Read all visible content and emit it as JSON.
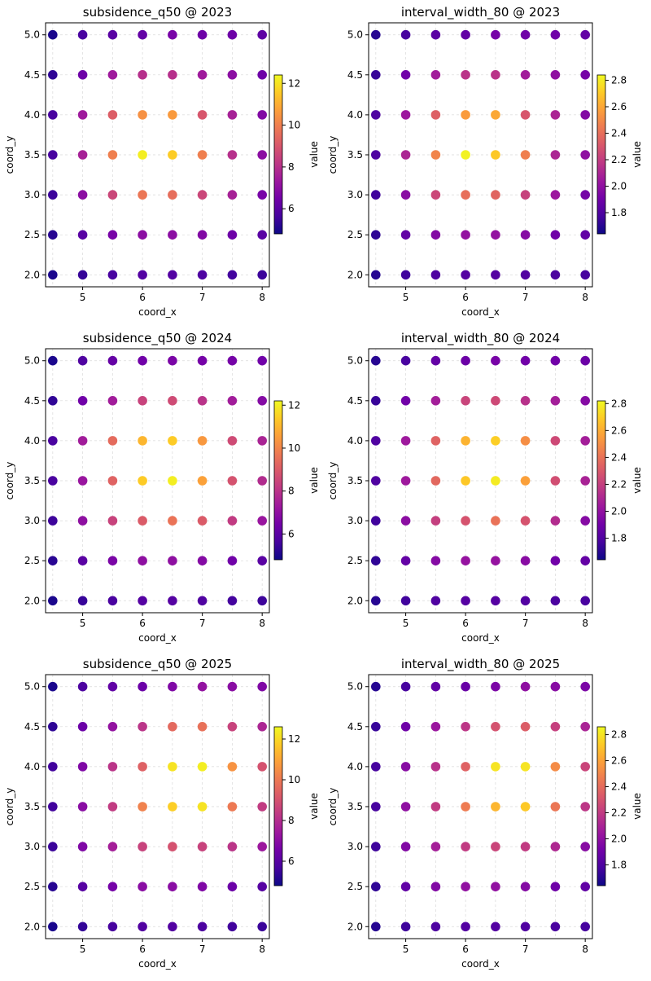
{
  "figure": {
    "x_grid": [
      4.5,
      5.0,
      5.5,
      6.0,
      6.5,
      7.0,
      7.5,
      8.0
    ],
    "y_grid": [
      2.0,
      2.5,
      3.0,
      3.5,
      4.0,
      4.5,
      5.0
    ],
    "colormap": [
      "#0d0887",
      "#46039f",
      "#7201a8",
      "#9c179e",
      "#bd3786",
      "#d8576b",
      "#ed7953",
      "#fb9f3a",
      "#fdca26",
      "#f0f921"
    ]
  },
  "chart_data": [
    {
      "type": "scatter",
      "title": "subsidence_q50 @ 2023",
      "xlabel": "coord_x",
      "ylabel": "coord_y",
      "colorbar_label": "value",
      "xlim": [
        4.38,
        8.12
      ],
      "ylim": [
        1.85,
        5.15
      ],
      "xticks": [
        5,
        6,
        7,
        8
      ],
      "yticks": [
        "2.0",
        "2.5",
        "3.0",
        "3.5",
        "4.0",
        "4.5",
        "5.0"
      ],
      "clim": [
        4.8,
        12.4
      ],
      "cticks": [
        6,
        8,
        10,
        12
      ],
      "grid": true,
      "values": [
        [
          5.0,
          5.4,
          5.7,
          5.9,
          5.9,
          5.8,
          5.6,
          5.5
        ],
        [
          5.2,
          6.0,
          6.6,
          7.0,
          7.0,
          6.8,
          6.4,
          6.0
        ],
        [
          5.5,
          7.0,
          8.6,
          9.8,
          9.6,
          8.6,
          7.6,
          6.6
        ],
        [
          5.7,
          7.6,
          10.0,
          12.2,
          11.6,
          10.0,
          8.0,
          7.0
        ],
        [
          5.7,
          7.4,
          9.2,
          10.4,
          10.6,
          9.0,
          7.6,
          6.8
        ],
        [
          5.3,
          6.4,
          7.4,
          8.0,
          8.0,
          7.4,
          7.0,
          6.4
        ],
        [
          5.0,
          5.7,
          6.0,
          6.2,
          6.6,
          6.4,
          6.4,
          6.1
        ]
      ]
    },
    {
      "type": "scatter",
      "title": "interval_width_80 @ 2023",
      "xlabel": "coord_x",
      "ylabel": "coord_y",
      "colorbar_label": "value",
      "xlim": [
        4.38,
        8.12
      ],
      "ylim": [
        1.85,
        5.15
      ],
      "xticks": [
        5,
        6,
        7,
        8
      ],
      "yticks": [
        "2.0",
        "2.5",
        "3.0",
        "3.5",
        "4.0",
        "4.5",
        "5.0"
      ],
      "clim": [
        1.64,
        2.84
      ],
      "cticks": [
        "1.8",
        "2.0",
        "2.2",
        "2.4",
        "2.6",
        "2.8"
      ],
      "grid": true,
      "values": [
        [
          1.7,
          1.76,
          1.8,
          1.82,
          1.82,
          1.81,
          1.79,
          1.78
        ],
        [
          1.72,
          1.86,
          1.96,
          2.01,
          2.01,
          1.97,
          1.9,
          1.86
        ],
        [
          1.76,
          1.98,
          2.24,
          2.4,
          2.36,
          2.22,
          2.04,
          1.92
        ],
        [
          1.8,
          2.1,
          2.48,
          2.82,
          2.7,
          2.46,
          2.1,
          2.0
        ],
        [
          1.8,
          2.04,
          2.34,
          2.56,
          2.6,
          2.3,
          2.1,
          1.96
        ],
        [
          1.74,
          1.9,
          2.06,
          2.16,
          2.16,
          2.06,
          2.0,
          1.92
        ],
        [
          1.7,
          1.78,
          1.84,
          1.86,
          1.92,
          1.9,
          1.9,
          1.86
        ]
      ]
    },
    {
      "type": "scatter",
      "title": "subsidence_q50 @ 2024",
      "xlabel": "coord_x",
      "ylabel": "coord_y",
      "colorbar_label": "value",
      "xlim": [
        4.38,
        8.12
      ],
      "ylim": [
        1.85,
        5.15
      ],
      "xticks": [
        5,
        6,
        7,
        8
      ],
      "yticks": [
        "2.0",
        "2.5",
        "3.0",
        "3.5",
        "4.0",
        "4.5",
        "5.0"
      ],
      "clim": [
        4.8,
        12.2
      ],
      "cticks": [
        6,
        8,
        10,
        12
      ],
      "grid": true,
      "values": [
        [
          5.0,
          5.4,
          5.7,
          5.9,
          5.9,
          5.8,
          5.6,
          5.5
        ],
        [
          5.2,
          6.0,
          6.6,
          7.0,
          7.0,
          6.8,
          6.4,
          6.0
        ],
        [
          5.5,
          7.0,
          8.4,
          9.0,
          9.6,
          9.0,
          8.2,
          7.2
        ],
        [
          5.7,
          7.2,
          9.2,
          11.4,
          12.0,
          10.6,
          8.8,
          7.8
        ],
        [
          5.7,
          7.4,
          9.4,
          11.0,
          11.4,
          10.4,
          8.6,
          7.6
        ],
        [
          5.3,
          6.4,
          7.4,
          8.4,
          8.6,
          8.0,
          7.4,
          6.8
        ],
        [
          5.0,
          5.8,
          6.2,
          6.4,
          6.6,
          6.5,
          6.5,
          6.4
        ]
      ]
    },
    {
      "type": "scatter",
      "title": "interval_width_80 @ 2024",
      "xlabel": "coord_x",
      "ylabel": "coord_y",
      "colorbar_label": "value",
      "xlim": [
        4.38,
        8.12
      ],
      "ylim": [
        1.85,
        5.15
      ],
      "xticks": [
        5,
        6,
        7,
        8
      ],
      "yticks": [
        "2.0",
        "2.5",
        "3.0",
        "3.5",
        "4.0",
        "4.5",
        "5.0"
      ],
      "clim": [
        1.64,
        2.82
      ],
      "cticks": [
        "1.8",
        "2.0",
        "2.2",
        "2.4",
        "2.6",
        "2.8"
      ],
      "grid": true,
      "values": [
        [
          1.7,
          1.76,
          1.8,
          1.82,
          1.82,
          1.81,
          1.79,
          1.78
        ],
        [
          1.72,
          1.86,
          1.96,
          2.01,
          2.01,
          1.97,
          1.9,
          1.86
        ],
        [
          1.76,
          1.98,
          2.2,
          2.28,
          2.4,
          2.28,
          2.12,
          1.96
        ],
        [
          1.8,
          2.04,
          2.36,
          2.68,
          2.78,
          2.56,
          2.26,
          2.08
        ],
        [
          1.8,
          2.04,
          2.34,
          2.62,
          2.7,
          2.5,
          2.24,
          2.06
        ],
        [
          1.74,
          1.9,
          2.06,
          2.22,
          2.24,
          2.14,
          2.06,
          1.96
        ],
        [
          1.7,
          1.78,
          1.86,
          1.88,
          1.92,
          1.9,
          1.9,
          1.88
        ]
      ]
    },
    {
      "type": "scatter",
      "title": "subsidence_q50 @ 2025",
      "xlabel": "coord_x",
      "ylabel": "coord_y",
      "colorbar_label": "value",
      "xlim": [
        4.38,
        8.12
      ],
      "ylim": [
        1.85,
        5.15
      ],
      "xticks": [
        5,
        6,
        7,
        8
      ],
      "yticks": [
        "2.0",
        "2.5",
        "3.0",
        "3.5",
        "4.0",
        "4.5",
        "5.0"
      ],
      "clim": [
        4.8,
        12.6
      ],
      "cticks": [
        6,
        8,
        10,
        12
      ],
      "grid": true,
      "values": [
        [
          5.0,
          5.4,
          5.7,
          5.9,
          5.9,
          5.8,
          5.6,
          5.5
        ],
        [
          5.2,
          6.0,
          6.6,
          7.0,
          7.0,
          6.8,
          6.4,
          6.0
        ],
        [
          5.5,
          6.8,
          7.6,
          8.6,
          9.0,
          8.6,
          8.2,
          7.4
        ],
        [
          5.6,
          7.0,
          8.4,
          10.2,
          11.8,
          12.2,
          10.0,
          8.4
        ],
        [
          5.6,
          6.8,
          8.2,
          9.4,
          12.2,
          12.4,
          10.6,
          9.0
        ],
        [
          5.3,
          6.4,
          7.2,
          8.2,
          9.6,
          9.8,
          8.6,
          7.8
        ],
        [
          5.0,
          5.8,
          6.2,
          6.4,
          6.8,
          7.2,
          7.0,
          6.8
        ]
      ]
    },
    {
      "type": "scatter",
      "title": "interval_width_80 @ 2025",
      "xlabel": "coord_x",
      "ylabel": "coord_y",
      "colorbar_label": "value",
      "xlim": [
        4.38,
        8.12
      ],
      "ylim": [
        1.85,
        5.15
      ],
      "xticks": [
        5,
        6,
        7,
        8
      ],
      "yticks": [
        "2.0",
        "2.5",
        "3.0",
        "3.5",
        "4.0",
        "4.5",
        "5.0"
      ],
      "clim": [
        1.64,
        2.86
      ],
      "cticks": [
        "1.8",
        "2.0",
        "2.2",
        "2.4",
        "2.6",
        "2.8"
      ],
      "grid": true,
      "values": [
        [
          1.7,
          1.76,
          1.8,
          1.82,
          1.82,
          1.81,
          1.79,
          1.78
        ],
        [
          1.72,
          1.86,
          1.96,
          2.01,
          2.01,
          1.97,
          1.9,
          1.86
        ],
        [
          1.76,
          1.96,
          2.08,
          2.2,
          2.24,
          2.2,
          2.12,
          1.98
        ],
        [
          1.78,
          2.0,
          2.2,
          2.46,
          2.66,
          2.72,
          2.44,
          2.18
        ],
        [
          1.78,
          1.98,
          2.16,
          2.36,
          2.8,
          2.8,
          2.52,
          2.24
        ],
        [
          1.74,
          1.9,
          2.04,
          2.18,
          2.3,
          2.34,
          2.22,
          2.1
        ],
        [
          1.7,
          1.78,
          1.86,
          1.88,
          1.94,
          2.0,
          1.98,
          1.94
        ]
      ]
    }
  ]
}
